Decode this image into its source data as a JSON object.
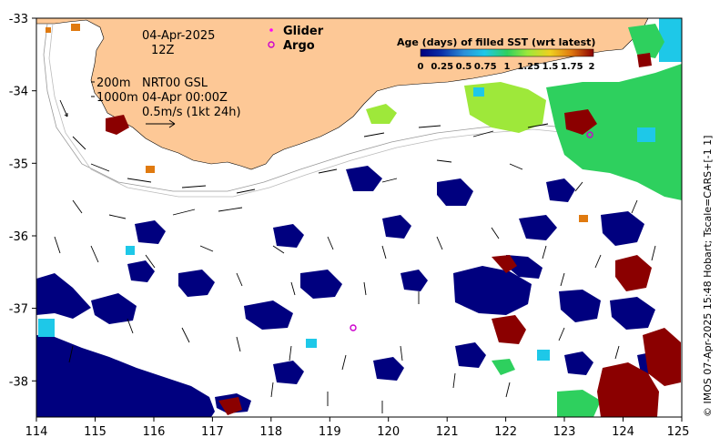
{
  "map": {
    "date": "04-Apr-2025",
    "hour": "12Z",
    "depth_200": "200m",
    "depth_1000": "1000m",
    "product": "NRT00 GSL",
    "product_time": "04-Apr 00:00Z",
    "velocity_scale": "0.5m/s (1kt 24h)",
    "legend": {
      "glider": "Glider",
      "argo": "Argo",
      "glider_color": "#ff00ff",
      "argo_color": "#cc00cc"
    },
    "colorbar": {
      "title": "Age (days) of filled SST (wrt latest)",
      "ticks": [
        "0",
        "0.25",
        "0.5",
        "0.75",
        "1",
        "1.25",
        "1.5",
        "1.75",
        "2"
      ]
    },
    "credit": "© IMOS 07-Apr-2025 15:48 Hobart; Tscale=CARS+[-1 1]",
    "x_ticks": [
      "114",
      "115",
      "116",
      "117",
      "118",
      "119",
      "120",
      "121",
      "122",
      "123",
      "124",
      "125"
    ],
    "y_ticks": [
      "-33",
      "-34",
      "-35",
      "-36",
      "-37",
      "-38"
    ],
    "colors": {
      "land": "#fdc896",
      "age_0": "#00007f",
      "age_025": "#0a2ea8",
      "age_05": "#2a8ed8",
      "age_075": "#1ec8e8",
      "age_1": "#2ed05e",
      "age_125": "#9ee83a",
      "age_15": "#f0d020",
      "age_175": "#e07a10",
      "age_2": "#8b0000"
    }
  }
}
